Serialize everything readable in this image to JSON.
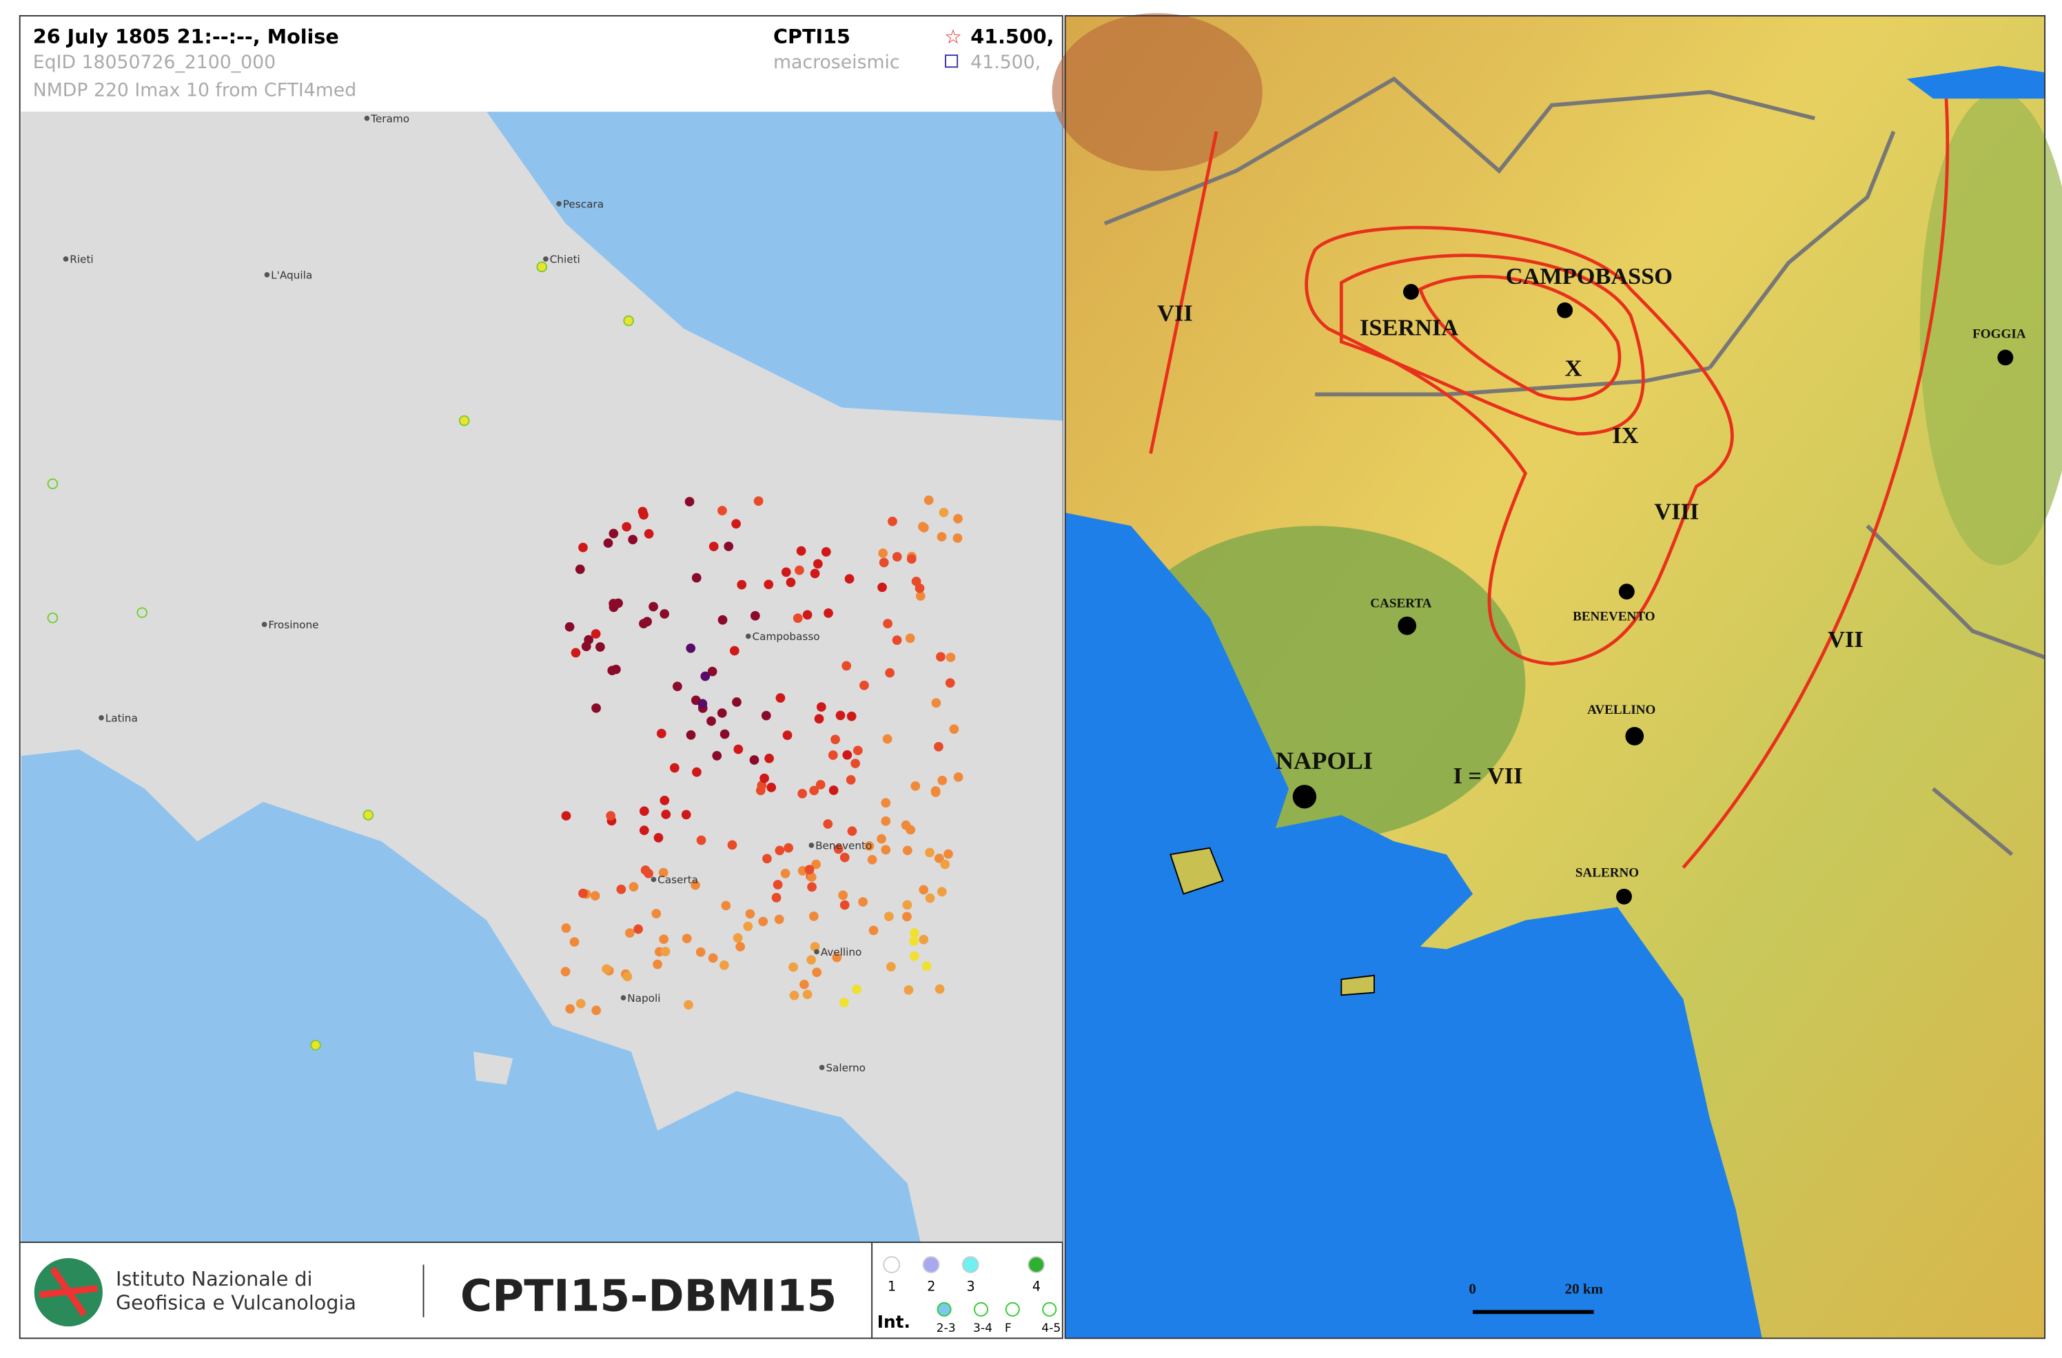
{
  "left_map": {
    "header": {
      "event": "26 July 1805  21:--:--,  Molise",
      "eqid": "EqID 18050726_2100_000",
      "info": "NMDP  220   Imax 10   from CFTI4med",
      "catalog": "CPTI15",
      "method": "macroseismic",
      "coord_1": "41.500,",
      "coord_2": "41.500,"
    },
    "places": [
      "Teramo",
      "Pescara",
      "Rieti",
      "L'Aquila",
      "Chieti",
      "Frosinone",
      "Latina",
      "Campobasso",
      "Benevento",
      "Caserta",
      "Napoli",
      "Avellino",
      "Salerno"
    ],
    "footer": {
      "institute_1": "Istituto Nazionale di",
      "institute_2": "Geofisica e Vulcanologia",
      "product": "CPTI15-DBMI15"
    },
    "legend": {
      "top": [
        "1",
        "2",
        "3",
        "4"
      ],
      "title": "Int.",
      "bottom": [
        "2-3",
        "3-4",
        "F",
        "4-5"
      ]
    }
  },
  "right_map": {
    "labels": [
      "VII",
      "CAMPOBASSO",
      "ISERNIA",
      "X",
      "IX",
      "VIII",
      "FOGGIA",
      "CASERTA",
      "BENEVENTO",
      "VII",
      "AVELLINO",
      "NAPOLI",
      "I = VII",
      "SALERNO"
    ],
    "scale": [
      "0",
      "20 km"
    ]
  }
}
